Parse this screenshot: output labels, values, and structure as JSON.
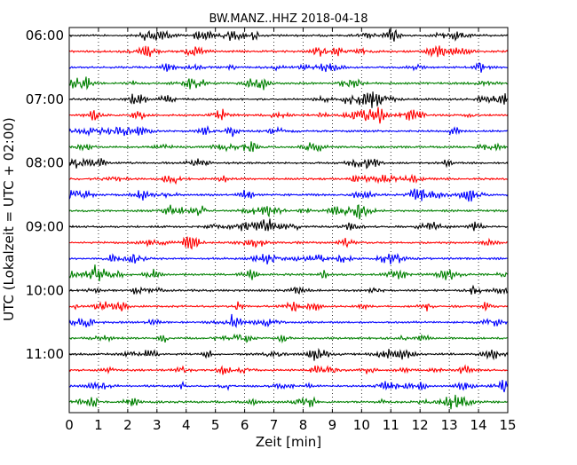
{
  "chart_data": {
    "type": "line",
    "title": "BW.MANZ..HHZ 2018-04-18",
    "xlabel": "Zeit  [min]",
    "ylabel": "UTC (Lokalzeit = UTC + 02:00)",
    "xlim": [
      0,
      15
    ],
    "x_ticks": [
      "0",
      "1",
      "2",
      "3",
      "4",
      "5",
      "6",
      "7",
      "8",
      "9",
      "10",
      "11",
      "12",
      "13",
      "14",
      "15"
    ],
    "y_ticks": [
      "06:00",
      "07:00",
      "08:00",
      "09:00",
      "10:00",
      "11:00"
    ],
    "grid": "vertical dotted at each minute",
    "trace_interval_minutes": 15,
    "trace_count": 24,
    "trace_colors": [
      "#000000",
      "#ff0000",
      "#0000ff",
      "#008000"
    ]
  }
}
